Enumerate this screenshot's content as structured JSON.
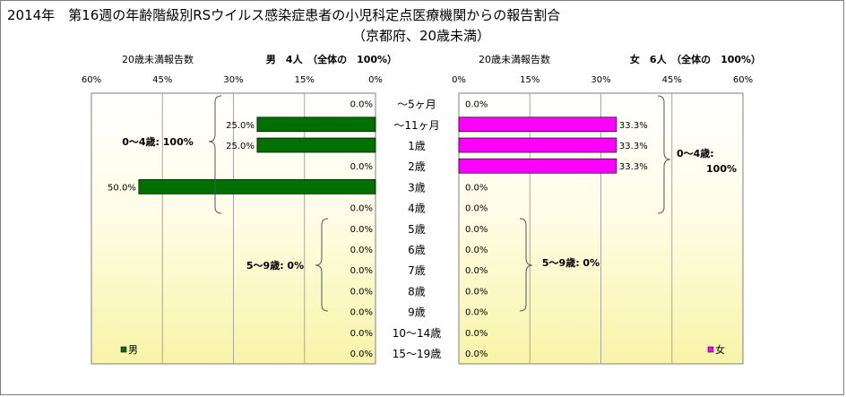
{
  "chart_data": {
    "type": "bar",
    "orientation": "horizontal-butterfly",
    "title": "2014年　第16週の年齢階級別RSウイルス感染症患者の小児科定点医療機関からの報告割合",
    "subtitle": "（京都府、20歳未満）",
    "categories": [
      "～5ヶ月",
      "～11ヶ月",
      "1歳",
      "2歳",
      "3歳",
      "4歳",
      "5歳",
      "6歳",
      "7歳",
      "8歳",
      "9歳",
      "10～14歳",
      "15～19歳"
    ],
    "xlim": [
      0,
      60
    ],
    "ticks": [
      "60%",
      "45%",
      "30%",
      "15%",
      "0%"
    ],
    "ticks_right": [
      "0%",
      "15%",
      "30%",
      "45%",
      "60%"
    ],
    "series": [
      {
        "name": "男",
        "header_left": "20歳未満報告数",
        "header_right": "男　4人　（全体の　100%）",
        "color": "#007000",
        "values": [
          0,
          25,
          25,
          0,
          50,
          0,
          0,
          0,
          0,
          0,
          0,
          0,
          0
        ],
        "labels": [
          "0.0%",
          "25.0%",
          "25.0%",
          "0.0%",
          "50.0%",
          "0.0%",
          "0.0%",
          "0.0%",
          "0.0%",
          "0.0%",
          "0.0%",
          "0.0%",
          "0.0%"
        ],
        "group_labels": [
          "0～4歳: 100%",
          "5～9歳: 0%"
        ],
        "legend": "男"
      },
      {
        "name": "女",
        "header_left": "20歳未満報告数",
        "header_right": "女　6人　（全体の　100%）",
        "color": "#ff00ff",
        "values": [
          0,
          33.3,
          33.3,
          33.3,
          0,
          0,
          0,
          0,
          0,
          0,
          0,
          0,
          0
        ],
        "labels": [
          "0.0%",
          "33.3%",
          "33.3%",
          "33.3%",
          "0.0%",
          "0.0%",
          "0.0%",
          "0.0%",
          "0.0%",
          "0.0%",
          "0.0%",
          "0.0%",
          "0.0%"
        ],
        "group_labels": [
          "0～4歳:",
          "100%",
          "5～9歳: 0%"
        ],
        "legend": "女"
      }
    ],
    "grid": true,
    "legend_position": "bottom-left"
  }
}
